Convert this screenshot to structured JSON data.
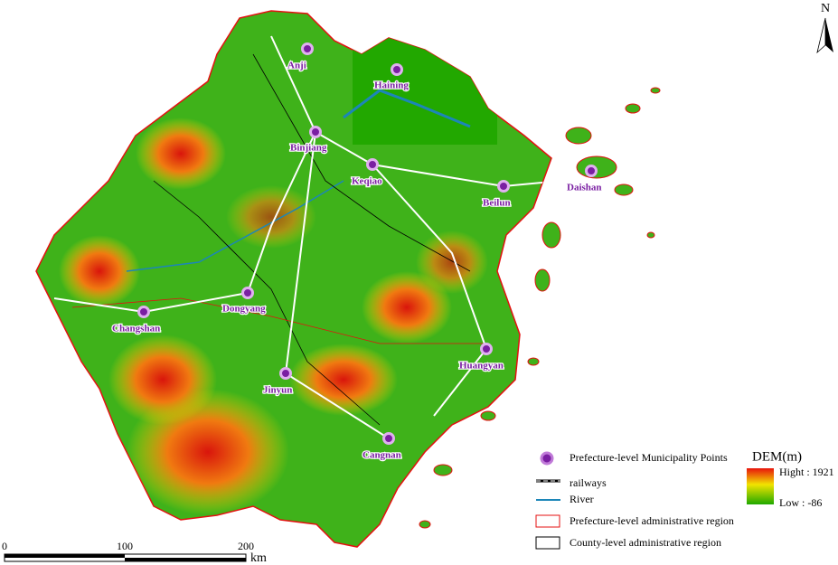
{
  "north": "N",
  "cities": [
    "Anji",
    "Haining",
    "Binjiang",
    "Keqiao",
    "Beilun",
    "Daishan",
    "Dongyang",
    "Changshan",
    "Huangyan",
    "Jinyun",
    "Cangnan"
  ],
  "legend": [
    "Prefecture-level Municipality Points",
    "railways",
    "River",
    "Prefecture-level administrative region",
    "County-level administrative region"
  ],
  "dem": {
    "title": "DEM(m)",
    "high": "Hight : 1921",
    "low": "Low : -86"
  },
  "scale": [
    "0",
    "100",
    "200"
  ],
  "scale_unit": "km"
}
